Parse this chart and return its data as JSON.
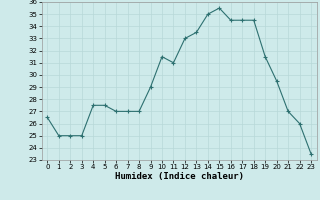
{
  "x": [
    0,
    1,
    2,
    3,
    4,
    5,
    6,
    7,
    8,
    9,
    10,
    11,
    12,
    13,
    14,
    15,
    16,
    17,
    18,
    19,
    20,
    21,
    22,
    23
  ],
  "y": [
    26.5,
    25.0,
    25.0,
    25.0,
    27.5,
    27.5,
    27.0,
    27.0,
    27.0,
    29.0,
    31.5,
    31.0,
    33.0,
    33.5,
    35.0,
    35.5,
    34.5,
    34.5,
    34.5,
    31.5,
    29.5,
    27.0,
    26.0,
    23.5
  ],
  "xlabel": "Humidex (Indice chaleur)",
  "xlim": [
    -0.5,
    23.5
  ],
  "ylim": [
    23,
    36
  ],
  "yticks": [
    23,
    24,
    25,
    26,
    27,
    28,
    29,
    30,
    31,
    32,
    33,
    34,
    35,
    36
  ],
  "xticks": [
    0,
    1,
    2,
    3,
    4,
    5,
    6,
    7,
    8,
    9,
    10,
    11,
    12,
    13,
    14,
    15,
    16,
    17,
    18,
    19,
    20,
    21,
    22,
    23
  ],
  "line_color": "#2d7070",
  "marker": "+",
  "bg_color": "#ceeaea",
  "grid_color": "#b8d8d8",
  "linewidth": 0.8,
  "markersize": 3,
  "markeredgewidth": 0.8
}
